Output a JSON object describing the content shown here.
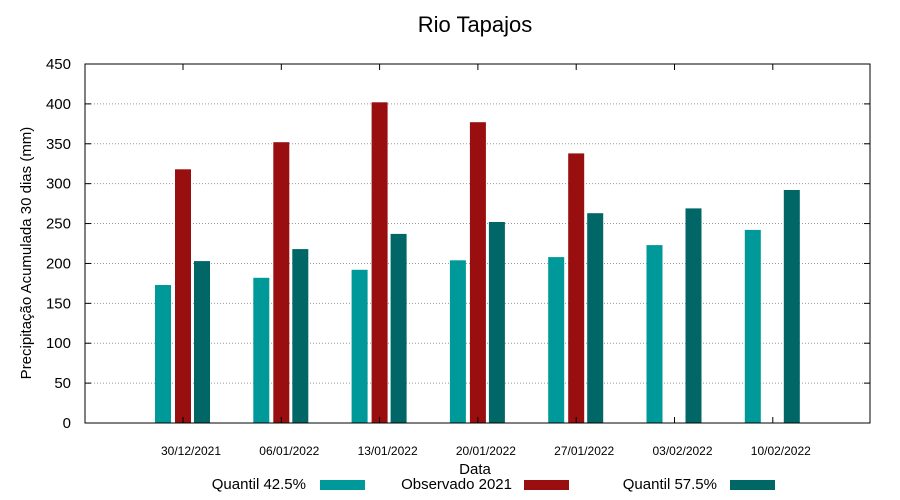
{
  "chart_data": {
    "type": "bar",
    "title": "Rio Tapajos",
    "xlabel": "Data",
    "ylabel": "Precipitação Acumulada 30 dias (mm)",
    "ylim": [
      0,
      450
    ],
    "yticks": [
      0,
      50,
      100,
      150,
      200,
      250,
      300,
      350,
      400,
      450
    ],
    "grid": true,
    "legend_position": "bottom",
    "categories": [
      "30/12/2021",
      "06/01/2022",
      "13/01/2022",
      "20/01/2022",
      "27/01/2022",
      "03/02/2022",
      "10/02/2022"
    ],
    "series": [
      {
        "name": "Quantil 42.5%",
        "color": "#009999",
        "values": [
          173,
          182,
          192,
          204,
          208,
          223,
          242
        ]
      },
      {
        "name": "Observado 2021",
        "color": "#990f0f",
        "values": [
          318,
          352,
          402,
          377,
          338,
          null,
          null
        ]
      },
      {
        "name": "Quantil 57.5%",
        "color": "#006666",
        "values": [
          203,
          218,
          237,
          252,
          263,
          269,
          292
        ]
      }
    ]
  }
}
